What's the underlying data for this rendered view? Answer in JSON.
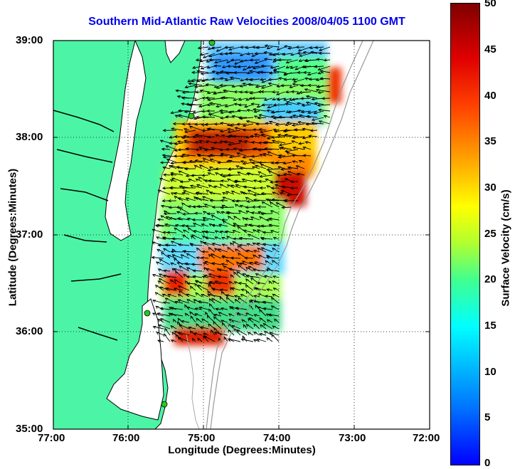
{
  "title": "Southern Mid-Atlantic Raw Velocities 2008/04/05 1100 GMT",
  "y_axis": {
    "label": "Latitude (Degrees:Minutes)",
    "ticks": [
      "39:00",
      "38:00",
      "37:00",
      "36:00",
      "35:00"
    ]
  },
  "x_axis": {
    "label": "Longitude (Degrees:Minutes)",
    "ticks": [
      "77:00",
      "76:00",
      "75:00",
      "74:00",
      "73:00",
      "72:00"
    ]
  },
  "colorbar": {
    "label": "Surface Velocity (cm/s)",
    "ticks": [
      "50",
      "45",
      "40",
      "35",
      "30",
      "25",
      "20",
      "15",
      "10",
      "5",
      "0"
    ],
    "min": 0,
    "max": 50
  },
  "colors": {
    "land": "#4cf5a6",
    "title": "#0000ee",
    "station": "#22cc22"
  }
}
